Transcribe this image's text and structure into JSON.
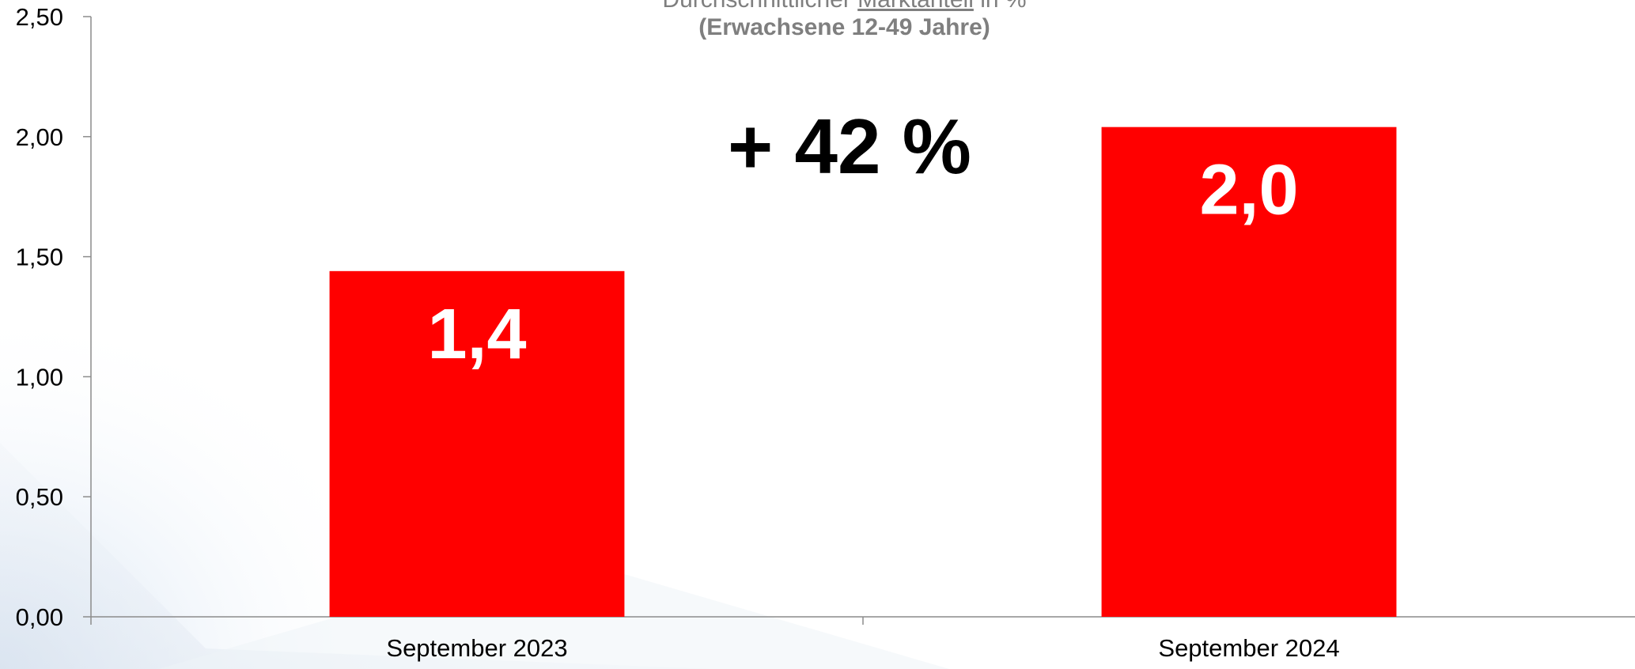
{
  "title": {
    "prefix": "Durchschnittlicher ",
    "underlined": "Marktanteil",
    "suffix": " in %",
    "subtitle": "(Erwachsene 12-49 Jahre)"
  },
  "annotation": "+ 42 %",
  "colors": {
    "bar": "#ff0000",
    "axis": "#8c8c8c",
    "label": "#ffffff"
  },
  "chart_data": {
    "type": "bar",
    "categories": [
      "September 2023",
      "September 2024"
    ],
    "values": [
      1.44,
      2.04
    ],
    "data_labels": [
      "1,4",
      "2,0"
    ],
    "yticks": [
      "0,00",
      "0,50",
      "1,00",
      "1,50",
      "2,00",
      "2,50"
    ],
    "ylim": [
      0,
      2.5
    ],
    "grid": false,
    "legend": "none"
  }
}
